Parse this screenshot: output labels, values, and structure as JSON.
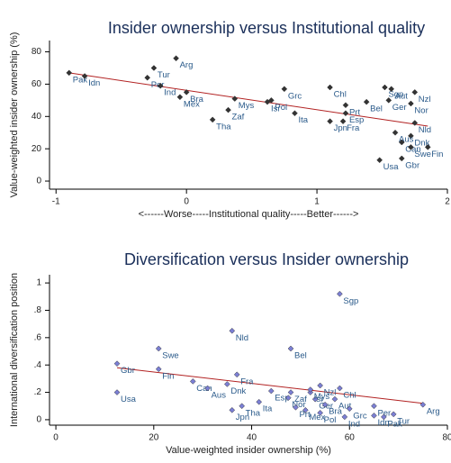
{
  "chart_data": [
    {
      "type": "scatter",
      "title": "Insider ownership versus Institutional quality",
      "x_label": "<------Worse-----Institutional quality-----Better------>",
      "y_label": "Value-weighted insider ownership (%)",
      "labels": [
        "Pak",
        "Idn",
        "Per",
        "Tur",
        "Arg",
        "Ind",
        "Mex",
        "Bra",
        "Mys",
        "Zaf",
        "Tha",
        "Grc",
        "Isr",
        "Pol",
        "Ita",
        "Chl",
        "Jpn",
        "Prt",
        "Esp",
        "Fra",
        "Bel",
        "Sgp",
        "Aut",
        "Ger",
        "Nzl",
        "Nor",
        "Nld",
        "Dnk",
        "Aus",
        "Can",
        "Swe",
        "Fin",
        "Usa",
        "Gbr"
      ],
      "x": [
        -0.9,
        -0.78,
        -0.3,
        -0.25,
        -0.08,
        -0.2,
        -0.05,
        0,
        0.37,
        0.32,
        0.2,
        0.75,
        0.62,
        0.65,
        0.83,
        1.1,
        1.1,
        1.22,
        1.22,
        1.2,
        1.38,
        1.52,
        1.57,
        1.55,
        1.75,
        1.72,
        1.75,
        1.72,
        1.6,
        1.65,
        1.72,
        1.85,
        1.48,
        1.65
      ],
      "y": [
        67,
        65,
        64,
        70,
        76,
        59,
        52,
        55,
        51,
        44,
        38,
        57,
        49,
        50,
        42,
        58,
        37,
        47,
        42,
        37,
        49,
        58,
        57,
        50,
        55,
        48,
        36,
        28,
        30,
        24,
        21,
        21,
        13,
        14
      ],
      "color": "#333333",
      "fit": {
        "x": [
          -0.9,
          1.85
        ],
        "y": [
          67,
          34
        ],
        "color": "#b22222"
      },
      "xlim": [
        -1.05,
        2
      ],
      "ylim": [
        -5,
        87
      ],
      "xticks": [
        -1,
        0,
        1,
        2
      ],
      "yticks": [
        0,
        20,
        40,
        60,
        80
      ]
    },
    {
      "type": "scatter",
      "title": "Diversification versus Insider ownership",
      "x_label": "Value-weighted insider ownership (%)",
      "y_label": "International diversification position",
      "labels": [
        "Usa",
        "Gbr",
        "Fin",
        "Swe",
        "Can",
        "Aus",
        "Dnk",
        "Nld",
        "Fra",
        "Jpn",
        "Tha",
        "Esp",
        "Ita",
        "Zaf",
        "Nor",
        "Prt",
        "Mex",
        "Isr",
        "Ger",
        "Pol",
        "Mys",
        "Bel",
        "Nzl",
        "Chl",
        "Bra",
        "Aut",
        "Grc",
        "Sgp",
        "Ind",
        "Idn",
        "Per",
        "Pak",
        "Tur",
        "Arg"
      ],
      "x": [
        12.5,
        12.5,
        21,
        21,
        28,
        31,
        35,
        36,
        37,
        36,
        38,
        44,
        41.5,
        48,
        47.5,
        49,
        51,
        52,
        53,
        54,
        52,
        48,
        54,
        58,
        55,
        57,
        60,
        58,
        59,
        65,
        65,
        67,
        69,
        75
      ],
      "y": [
        0.2,
        0.41,
        0.37,
        0.52,
        0.28,
        0.23,
        0.26,
        0.65,
        0.33,
        0.07,
        0.1,
        0.21,
        0.13,
        0.2,
        0.16,
        0.09,
        0.07,
        0.2,
        0.15,
        0.05,
        0.22,
        0.52,
        0.25,
        0.23,
        0.11,
        0.15,
        0.08,
        0.92,
        0.02,
        0.03,
        0.1,
        0.02,
        0.04,
        0.11
      ],
      "color": "#7b7fd4",
      "fit": {
        "x": [
          12.5,
          75
        ],
        "y": [
          0.38,
          0.12
        ],
        "color": "#b22222"
      },
      "xlim": [
        -1.3,
        80
      ],
      "ylim": [
        -0.04,
        1.06
      ],
      "xticks": [
        0,
        20,
        40,
        60,
        80
      ],
      "yticks": [
        0,
        {
          "value": 0.2,
          "label": ".2"
        },
        {
          "value": 0.4,
          "label": ".4"
        },
        {
          "value": 0.6,
          "label": ".6"
        },
        {
          "value": 0.8,
          "label": ".8"
        },
        1
      ]
    }
  ]
}
